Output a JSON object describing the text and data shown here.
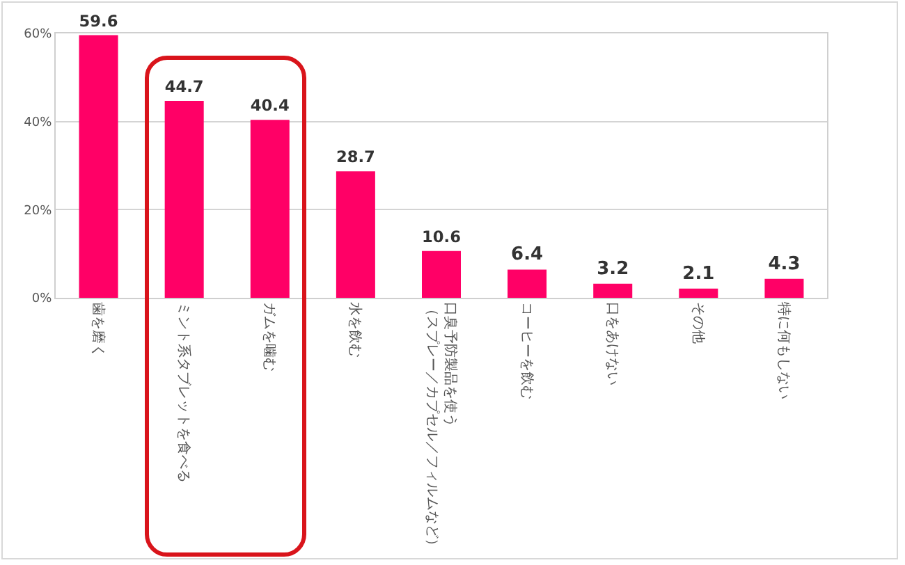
{
  "chart_data": {
    "type": "bar",
    "categories": [
      "歯を磨く",
      "ミント系タブレットを食べる",
      "ガムを噛む",
      "水を飲む",
      "口臭予防製品を使う（スプレー／カプセル／フィルムなど）",
      "コーヒーを飲む",
      "口をあけない",
      "その他",
      "特に何もしない"
    ],
    "values": [
      59.6,
      44.7,
      40.4,
      28.7,
      10.6,
      6.4,
      3.2,
      2.1,
      4.3
    ],
    "color": "#ff0066",
    "ylim": [
      0,
      60
    ],
    "yticks": [
      {
        "value": 0,
        "label": "0%"
      },
      {
        "value": 20,
        "label": "20%"
      },
      {
        "value": 40,
        "label": "40%"
      },
      {
        "value": 60,
        "label": "60%"
      }
    ],
    "grid": "y",
    "data_labels": true
  }
}
